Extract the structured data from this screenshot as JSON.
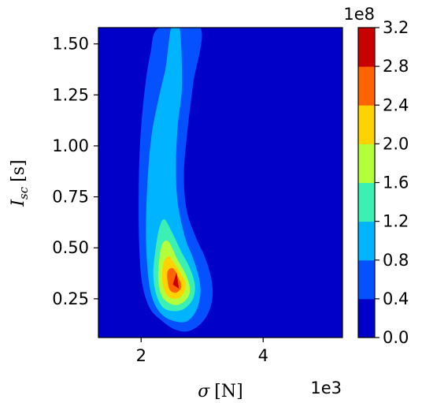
{
  "chart_data": {
    "type": "contour",
    "xlabel": "σ [N]",
    "xlabel_parts": {
      "sym": "σ",
      "unit": "[N]"
    },
    "ylabel": "I_sc [s]",
    "ylabel_parts": {
      "sym": "I",
      "sub": "sc",
      "unit": "[s]"
    },
    "x_multiplier": "1e3",
    "colorbar_multiplier": "1e8",
    "xlim": [
      1.3,
      5.3
    ],
    "ylim": [
      0.06,
      1.58
    ],
    "x_ticks": [
      {
        "value": 2,
        "label": "2"
      },
      {
        "value": 4,
        "label": "4"
      }
    ],
    "y_ticks": [
      {
        "value": 0.25,
        "label": "0.25"
      },
      {
        "value": 0.5,
        "label": "0.50"
      },
      {
        "value": 0.75,
        "label": "0.75"
      },
      {
        "value": 1.0,
        "label": "1.00"
      },
      {
        "value": 1.25,
        "label": "1.25"
      },
      {
        "value": 1.5,
        "label": "1.50"
      }
    ],
    "colorbar_ticks": [
      {
        "value": 0.0,
        "label": "0.0"
      },
      {
        "value": 0.4,
        "label": "0.4"
      },
      {
        "value": 0.8,
        "label": "0.8"
      },
      {
        "value": 1.2,
        "label": "1.2"
      },
      {
        "value": 1.6,
        "label": "1.6"
      },
      {
        "value": 2.0,
        "label": "2.0"
      },
      {
        "value": 2.4,
        "label": "2.4"
      },
      {
        "value": 2.8,
        "label": "2.8"
      },
      {
        "value": 3.2,
        "label": "3.2"
      }
    ],
    "levels": [
      0.0,
      0.4,
      0.8,
      1.2,
      1.6,
      2.0,
      2.4,
      2.8,
      3.2
    ],
    "level_colors": [
      "#0000c8",
      "#0550ff",
      "#00b4ff",
      "#3cf0b4",
      "#b4ff3c",
      "#ffd200",
      "#ff6400",
      "#c80000"
    ],
    "peak": {
      "x": 2.6,
      "y": 0.33
    },
    "contours": [
      {
        "level_index": 1,
        "polygon": [
          [
            2.3,
            1.58
          ],
          [
            2.97,
            1.58
          ],
          [
            2.85,
            1.3
          ],
          [
            2.75,
            1.05
          ],
          [
            2.7,
            0.85
          ],
          [
            2.75,
            0.68
          ],
          [
            2.9,
            0.55
          ],
          [
            3.05,
            0.45
          ],
          [
            3.15,
            0.35
          ],
          [
            3.17,
            0.26
          ],
          [
            3.1,
            0.18
          ],
          [
            2.95,
            0.12
          ],
          [
            2.75,
            0.09
          ],
          [
            2.55,
            0.1
          ],
          [
            2.35,
            0.14
          ],
          [
            2.15,
            0.2
          ],
          [
            2.02,
            0.32
          ],
          [
            1.97,
            0.5
          ],
          [
            1.96,
            0.75
          ],
          [
            1.98,
            1.0
          ],
          [
            2.05,
            1.25
          ],
          [
            2.15,
            1.45
          ]
        ]
      },
      {
        "level_index": 2,
        "polygon": [
          [
            2.5,
            1.58
          ],
          [
            2.63,
            1.58
          ],
          [
            2.67,
            1.3
          ],
          [
            2.6,
            1.1
          ],
          [
            2.57,
            0.9
          ],
          [
            2.6,
            0.72
          ],
          [
            2.72,
            0.55
          ],
          [
            2.85,
            0.45
          ],
          [
            2.95,
            0.35
          ],
          [
            2.97,
            0.27
          ],
          [
            2.9,
            0.19
          ],
          [
            2.75,
            0.14
          ],
          [
            2.55,
            0.14
          ],
          [
            2.35,
            0.17
          ],
          [
            2.2,
            0.24
          ],
          [
            2.12,
            0.35
          ],
          [
            2.08,
            0.55
          ],
          [
            2.1,
            0.8
          ],
          [
            2.17,
            1.05
          ],
          [
            2.3,
            1.25
          ],
          [
            2.4,
            1.38
          ],
          [
            2.45,
            1.5
          ]
        ]
      },
      {
        "level_index": 3,
        "polygon": [
          [
            2.24,
            0.5
          ],
          [
            2.2,
            0.38
          ],
          [
            2.24,
            0.28
          ],
          [
            2.35,
            0.21
          ],
          [
            2.52,
            0.19
          ],
          [
            2.7,
            0.2
          ],
          [
            2.85,
            0.25
          ],
          [
            2.88,
            0.32
          ],
          [
            2.8,
            0.4
          ],
          [
            2.66,
            0.48
          ],
          [
            2.5,
            0.58
          ],
          [
            2.38,
            0.64
          ],
          [
            2.3,
            0.6
          ]
        ]
      },
      {
        "level_index": 4,
        "polygon": [
          [
            2.3,
            0.45
          ],
          [
            2.28,
            0.35
          ],
          [
            2.33,
            0.27
          ],
          [
            2.45,
            0.23
          ],
          [
            2.6,
            0.22
          ],
          [
            2.75,
            0.25
          ],
          [
            2.8,
            0.3
          ],
          [
            2.73,
            0.37
          ],
          [
            2.6,
            0.44
          ],
          [
            2.45,
            0.53
          ],
          [
            2.35,
            0.52
          ]
        ]
      },
      {
        "level_index": 5,
        "polygon": [
          [
            2.36,
            0.42
          ],
          [
            2.35,
            0.33
          ],
          [
            2.42,
            0.27
          ],
          [
            2.55,
            0.25
          ],
          [
            2.68,
            0.27
          ],
          [
            2.73,
            0.32
          ],
          [
            2.66,
            0.37
          ],
          [
            2.55,
            0.42
          ],
          [
            2.45,
            0.46
          ]
        ]
      },
      {
        "level_index": 6,
        "polygon": [
          [
            2.43,
            0.38
          ],
          [
            2.46,
            0.3
          ],
          [
            2.57,
            0.28
          ],
          [
            2.66,
            0.31
          ],
          [
            2.6,
            0.36
          ],
          [
            2.52,
            0.4
          ]
        ]
      },
      {
        "level_index": 7,
        "polygon": [
          [
            2.52,
            0.32
          ],
          [
            2.58,
            0.38
          ],
          [
            2.62,
            0.3
          ]
        ]
      }
    ],
    "grid": false,
    "colorbar": "right"
  }
}
